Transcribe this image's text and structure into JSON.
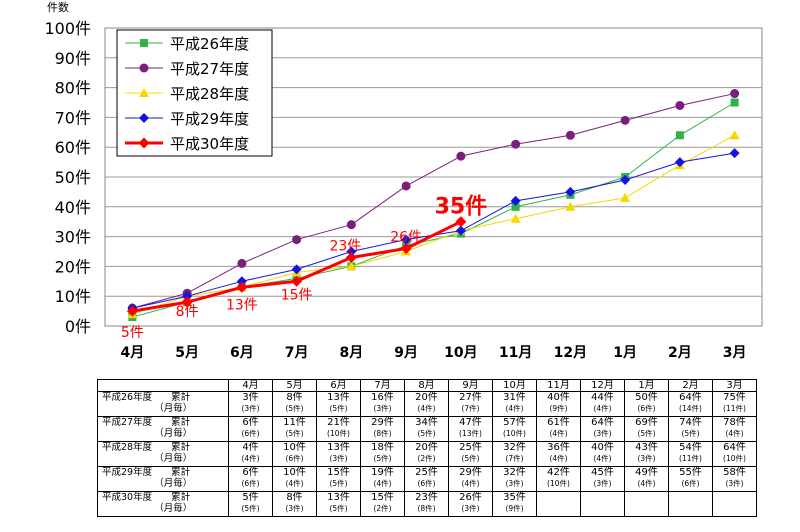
{
  "chart_data": {
    "type": "line",
    "title": "",
    "ylabel": "件数",
    "xlabel": "",
    "ylim": [
      0,
      100
    ],
    "yticks": [
      "0件",
      "10件",
      "20件",
      "30件",
      "40件",
      "50件",
      "60件",
      "70件",
      "80件",
      "90件",
      "100件"
    ],
    "categories": [
      "4月",
      "5月",
      "6月",
      "7月",
      "8月",
      "9月",
      "10月",
      "11月",
      "12月",
      "1月",
      "2月",
      "3月"
    ],
    "legend_position": "top-left",
    "series": [
      {
        "name": "平成26年度",
        "color": "#2eb34a",
        "marker": "square",
        "width": 1,
        "values": [
          3,
          8,
          13,
          16,
          20,
          27,
          31,
          40,
          44,
          50,
          64,
          75
        ]
      },
      {
        "name": "平成27年度",
        "color": "#7b1f7d",
        "marker": "circle",
        "width": 1,
        "values": [
          6,
          11,
          21,
          29,
          34,
          47,
          57,
          61,
          64,
          69,
          74,
          78
        ]
      },
      {
        "name": "平成28年度",
        "color": "#f5d800",
        "marker": "triangle",
        "width": 1,
        "values": [
          4,
          10,
          13,
          18,
          20,
          25,
          32,
          36,
          40,
          43,
          54,
          64
        ]
      },
      {
        "name": "平成29年度",
        "color": "#1414e0",
        "marker": "diamond",
        "width": 1,
        "values": [
          6,
          10,
          15,
          19,
          25,
          29,
          32,
          42,
          45,
          49,
          55,
          58
        ]
      },
      {
        "name": "平成30年度",
        "color": "#ff0000",
        "marker": "diamond",
        "width": 3,
        "values": [
          5,
          8,
          13,
          15,
          23,
          26,
          35,
          null,
          null,
          null,
          null,
          null
        ]
      }
    ],
    "annotations": [
      {
        "text": "5件",
        "category": "4月",
        "value": 5
      },
      {
        "text": "8件",
        "category": "5月",
        "value": 8
      },
      {
        "text": "13件",
        "category": "6月",
        "value": 13
      },
      {
        "text": "15件",
        "category": "7月",
        "value": 15
      },
      {
        "text": "23件",
        "category": "8月",
        "value": 23
      },
      {
        "text": "26件",
        "category": "9月",
        "value": 26
      },
      {
        "text": "35件",
        "category": "10月",
        "value": 35
      }
    ],
    "table": {
      "headers": [
        "4月",
        "5月",
        "6月",
        "7月",
        "8月",
        "9月",
        "10月",
        "11月",
        "12月",
        "1月",
        "2月",
        "3月"
      ],
      "rows": [
        {
          "label": "平成26年度　　累計\n　　　　　　（月毎）",
          "cells": [
            [
              "3件",
              "(3件)"
            ],
            [
              "8件",
              "(5件)"
            ],
            [
              "13件",
              "(5件)"
            ],
            [
              "16件",
              "(3件)"
            ],
            [
              "20件",
              "(4件)"
            ],
            [
              "27件",
              "(7件)"
            ],
            [
              "31件",
              "(4件)"
            ],
            [
              "40件",
              "(9件)"
            ],
            [
              "44件",
              "(4件)"
            ],
            [
              "50件",
              "(6件)"
            ],
            [
              "64件",
              "(14件)"
            ],
            [
              "75件",
              "(11件)"
            ]
          ]
        },
        {
          "label": "平成27年度　　累計\n　　　　　　（月毎）",
          "cells": [
            [
              "6件",
              "(6件)"
            ],
            [
              "11件",
              "(5件)"
            ],
            [
              "21件",
              "(10件)"
            ],
            [
              "29件",
              "(8件)"
            ],
            [
              "34件",
              "(5件)"
            ],
            [
              "47件",
              "(13件)"
            ],
            [
              "57件",
              "(10件)"
            ],
            [
              "61件",
              "(4件)"
            ],
            [
              "64件",
              "(3件)"
            ],
            [
              "69件",
              "(5件)"
            ],
            [
              "74件",
              "(5件)"
            ],
            [
              "78件",
              "(4件)"
            ]
          ]
        },
        {
          "label": "平成28年度　　累計\n　　　　　　（月毎）",
          "cells": [
            [
              "4件",
              "(4件)"
            ],
            [
              "10件",
              "(6件)"
            ],
            [
              "13件",
              "(3件)"
            ],
            [
              "18件",
              "(5件)"
            ],
            [
              "20件",
              "(2件)"
            ],
            [
              "25件",
              "(5件)"
            ],
            [
              "32件",
              "(7件)"
            ],
            [
              "36件",
              "(4件)"
            ],
            [
              "40件",
              "(4件)"
            ],
            [
              "43件",
              "(3件)"
            ],
            [
              "54件",
              "(11件)"
            ],
            [
              "64件",
              "(10件)"
            ]
          ]
        },
        {
          "label": "平成29年度　　累計\n　　　　　　（月毎）",
          "cells": [
            [
              "6件",
              "(6件)"
            ],
            [
              "10件",
              "(4件)"
            ],
            [
              "15件",
              "(5件)"
            ],
            [
              "19件",
              "(4件)"
            ],
            [
              "25件",
              "(6件)"
            ],
            [
              "29件",
              "(4件)"
            ],
            [
              "32件",
              "(3件)"
            ],
            [
              "42件",
              "(10件)"
            ],
            [
              "45件",
              "(3件)"
            ],
            [
              "49件",
              "(4件)"
            ],
            [
              "55件",
              "(6件)"
            ],
            [
              "58件",
              "(3件)"
            ]
          ]
        },
        {
          "label": "平成30年度　　累計\n　　　　　　（月毎）",
          "cells": [
            [
              "5件",
              "(5件)"
            ],
            [
              "8件",
              "(3件)"
            ],
            [
              "13件",
              "(5件)"
            ],
            [
              "15件",
              "(2件)"
            ],
            [
              "23件",
              "(8件)"
            ],
            [
              "26件",
              "(3件)"
            ],
            [
              "35件",
              "(9件)"
            ],
            [
              "",
              ""
            ],
            [
              "",
              ""
            ],
            [
              "",
              ""
            ],
            [
              "",
              ""
            ],
            [
              "",
              ""
            ]
          ]
        }
      ]
    }
  }
}
